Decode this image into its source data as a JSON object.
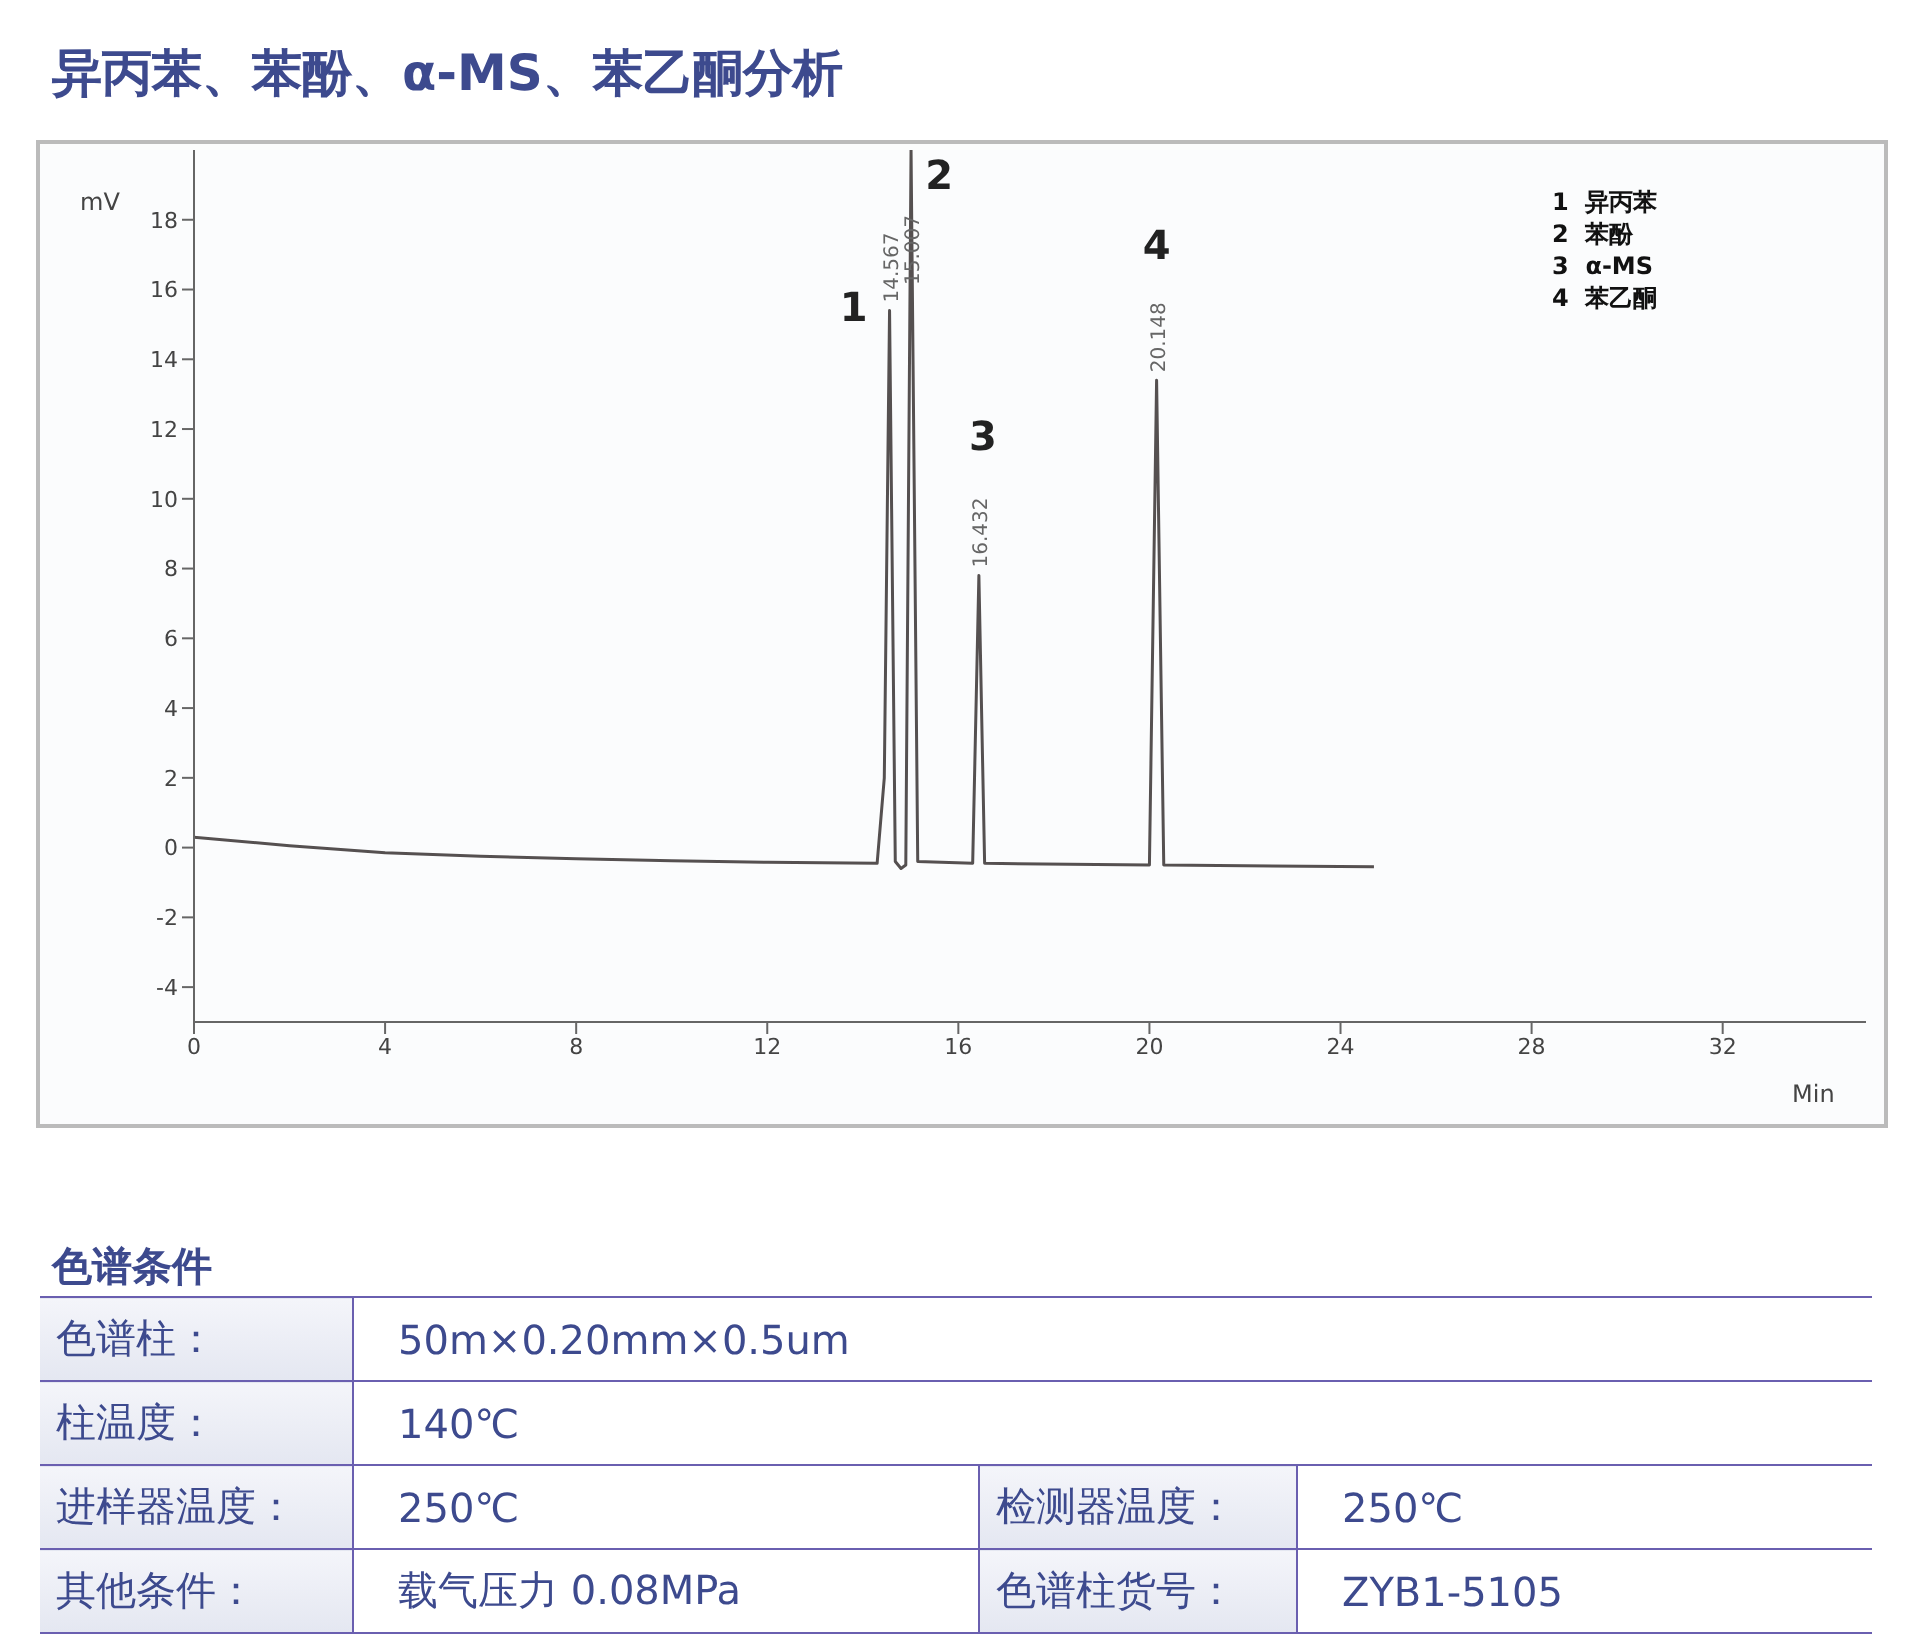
{
  "chart_data": {
    "type": "line",
    "title": "异丙苯、苯酚、α-MS、苯乙酮分析",
    "xlabel": "Min",
    "ylabel": "mV",
    "x": [
      0,
      2,
      4,
      6,
      8,
      10,
      12,
      14.3,
      14.45,
      14.56,
      14.68,
      14.8,
      14.9,
      15.01,
      15.15,
      16.3,
      16.43,
      16.55,
      20.0,
      20.15,
      20.3,
      24.7
    ],
    "series": [
      {
        "color": "#555050",
        "values": [
          0.3,
          0.05,
          -0.15,
          -0.25,
          -0.32,
          -0.38,
          -0.42,
          -0.45,
          2,
          15.4,
          -0.4,
          -0.6,
          -0.5,
          20,
          -0.4,
          -0.45,
          7.8,
          -0.45,
          -0.5,
          13.4,
          -0.5,
          -0.55
        ]
      }
    ],
    "xlim": [
      0,
      35
    ],
    "ylim": [
      -5,
      20
    ],
    "xticks": [
      0,
      4,
      8,
      12,
      16,
      20,
      24,
      28,
      32
    ],
    "yticks": [
      -4,
      -2,
      0,
      2,
      4,
      6,
      8,
      10,
      12,
      14,
      16,
      18
    ],
    "grid": false,
    "marker": "none",
    "line_style": "solid",
    "annotations": [
      {
        "text": "14.567",
        "x": 14.56,
        "y": 15.4
      },
      {
        "text": "15.007",
        "x": 15.01,
        "y": 15.9
      },
      {
        "text": "16.432",
        "x": 16.43,
        "y": 7.8
      },
      {
        "text": "20.148",
        "x": 20.15,
        "y": 13.4
      },
      {
        "text": "1",
        "x": 14.56,
        "y": 15.4
      },
      {
        "text": "2",
        "x": 15.01,
        "y": 20
      },
      {
        "text": "3",
        "x": 16.43,
        "y": 7.8
      },
      {
        "text": "4",
        "x": 20.15,
        "y": 13.4
      },
      "1  异丙苯",
      "2  苯酚",
      "3  α-MS",
      "4  苯乙酮",
      "色谱条件",
      "色谱柱：",
      "50m×0.20mm×0.5um",
      "柱温度：",
      "140℃",
      "进样器温度：",
      "250℃",
      "检测器温度：",
      "250℃",
      "其他条件：",
      "载气压力  0.08MPa",
      "色谱柱货号：",
      "ZYB1-5105"
    ]
  }
}
